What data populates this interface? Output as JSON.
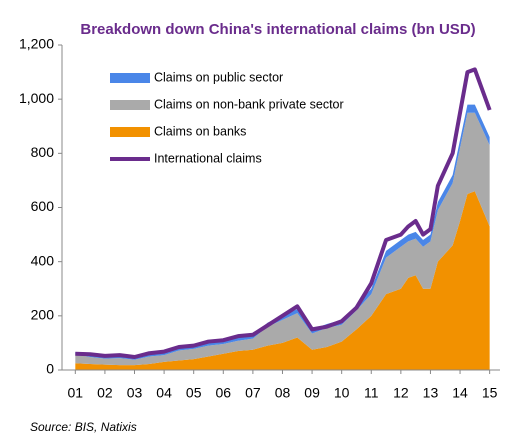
{
  "chart_data": {
    "type": "area",
    "title": "Breakdown down China's international claims (bn USD)",
    "source": "Source: BIS, Natixis",
    "legend": "upper left",
    "x": [
      2001,
      2001.5,
      2002,
      2002.5,
      2003,
      2003.5,
      2004,
      2004.5,
      2005,
      2005.5,
      2006,
      2006.5,
      2007,
      2007.5,
      2008,
      2008.5,
      2009,
      2009.5,
      2010,
      2010.5,
      2011,
      2011.5,
      2012,
      2012.25,
      2012.5,
      2012.75,
      2013,
      2013.25,
      2013.75,
      2014,
      2014.25,
      2014.5,
      2015
    ],
    "xlim": [
      2000.55,
      2015.35
    ],
    "xticks": [
      {
        "value": 2001,
        "label": "01"
      },
      {
        "value": 2002,
        "label": "02"
      },
      {
        "value": 2003,
        "label": "03"
      },
      {
        "value": 2004,
        "label": "04"
      },
      {
        "value": 2005,
        "label": "05"
      },
      {
        "value": 2006,
        "label": "06"
      },
      {
        "value": 2007,
        "label": "07"
      },
      {
        "value": 2008,
        "label": "08"
      },
      {
        "value": 2009,
        "label": "09"
      },
      {
        "value": 2010,
        "label": "10"
      },
      {
        "value": 2011,
        "label": "11"
      },
      {
        "value": 2012,
        "label": "12"
      },
      {
        "value": 2013,
        "label": "13"
      },
      {
        "value": 2014,
        "label": "14"
      },
      {
        "value": 2015,
        "label": "15"
      }
    ],
    "ylim": [
      0,
      1200
    ],
    "yticks": [
      0,
      200,
      400,
      600,
      800,
      {
        "value": 1000,
        "label": "1,000"
      },
      {
        "value": 1200,
        "label": "1,200"
      }
    ],
    "series": [
      {
        "name": "Claims on public sector",
        "type": "area",
        "color": "#4a86e8",
        "values": [
          8,
          8,
          8,
          8,
          8,
          8,
          10,
          10,
          10,
          10,
          12,
          12,
          12,
          15,
          15,
          15,
          15,
          15,
          18,
          20,
          20,
          25,
          25,
          25,
          25,
          25,
          25,
          30,
          30,
          30,
          30,
          30,
          30
        ]
      },
      {
        "name": "Claims on non-bank private sector",
        "type": "area",
        "color": "#aaaaaa",
        "values": [
          33,
          26,
          22,
          26,
          20,
          28,
          25,
          37,
          38,
          40,
          36,
          38,
          41,
          70,
          85,
          90,
          60,
          70,
          62,
          70,
          80,
          135,
          155,
          135,
          135,
          155,
          175,
          190,
          230,
          270,
          300,
          290,
          300
        ]
      },
      {
        "name": "Claims on banks",
        "type": "area",
        "color": "#f29100",
        "values": [
          25,
          22,
          20,
          18,
          18,
          22,
          30,
          35,
          40,
          50,
          60,
          70,
          75,
          90,
          100,
          120,
          75,
          85,
          105,
          150,
          200,
          280,
          300,
          340,
          350,
          300,
          300,
          400,
          460,
          550,
          650,
          660,
          530
        ]
      },
      {
        "name": "International claims",
        "type": "line",
        "color": "#6a2c8c",
        "values": [
          60,
          58,
          52,
          55,
          48,
          62,
          68,
          85,
          90,
          105,
          110,
          125,
          130,
          165,
          200,
          235,
          150,
          160,
          180,
          230,
          320,
          480,
          500,
          530,
          550,
          500,
          520,
          680,
          800,
          950,
          1100,
          1110,
          960
        ]
      }
    ]
  }
}
